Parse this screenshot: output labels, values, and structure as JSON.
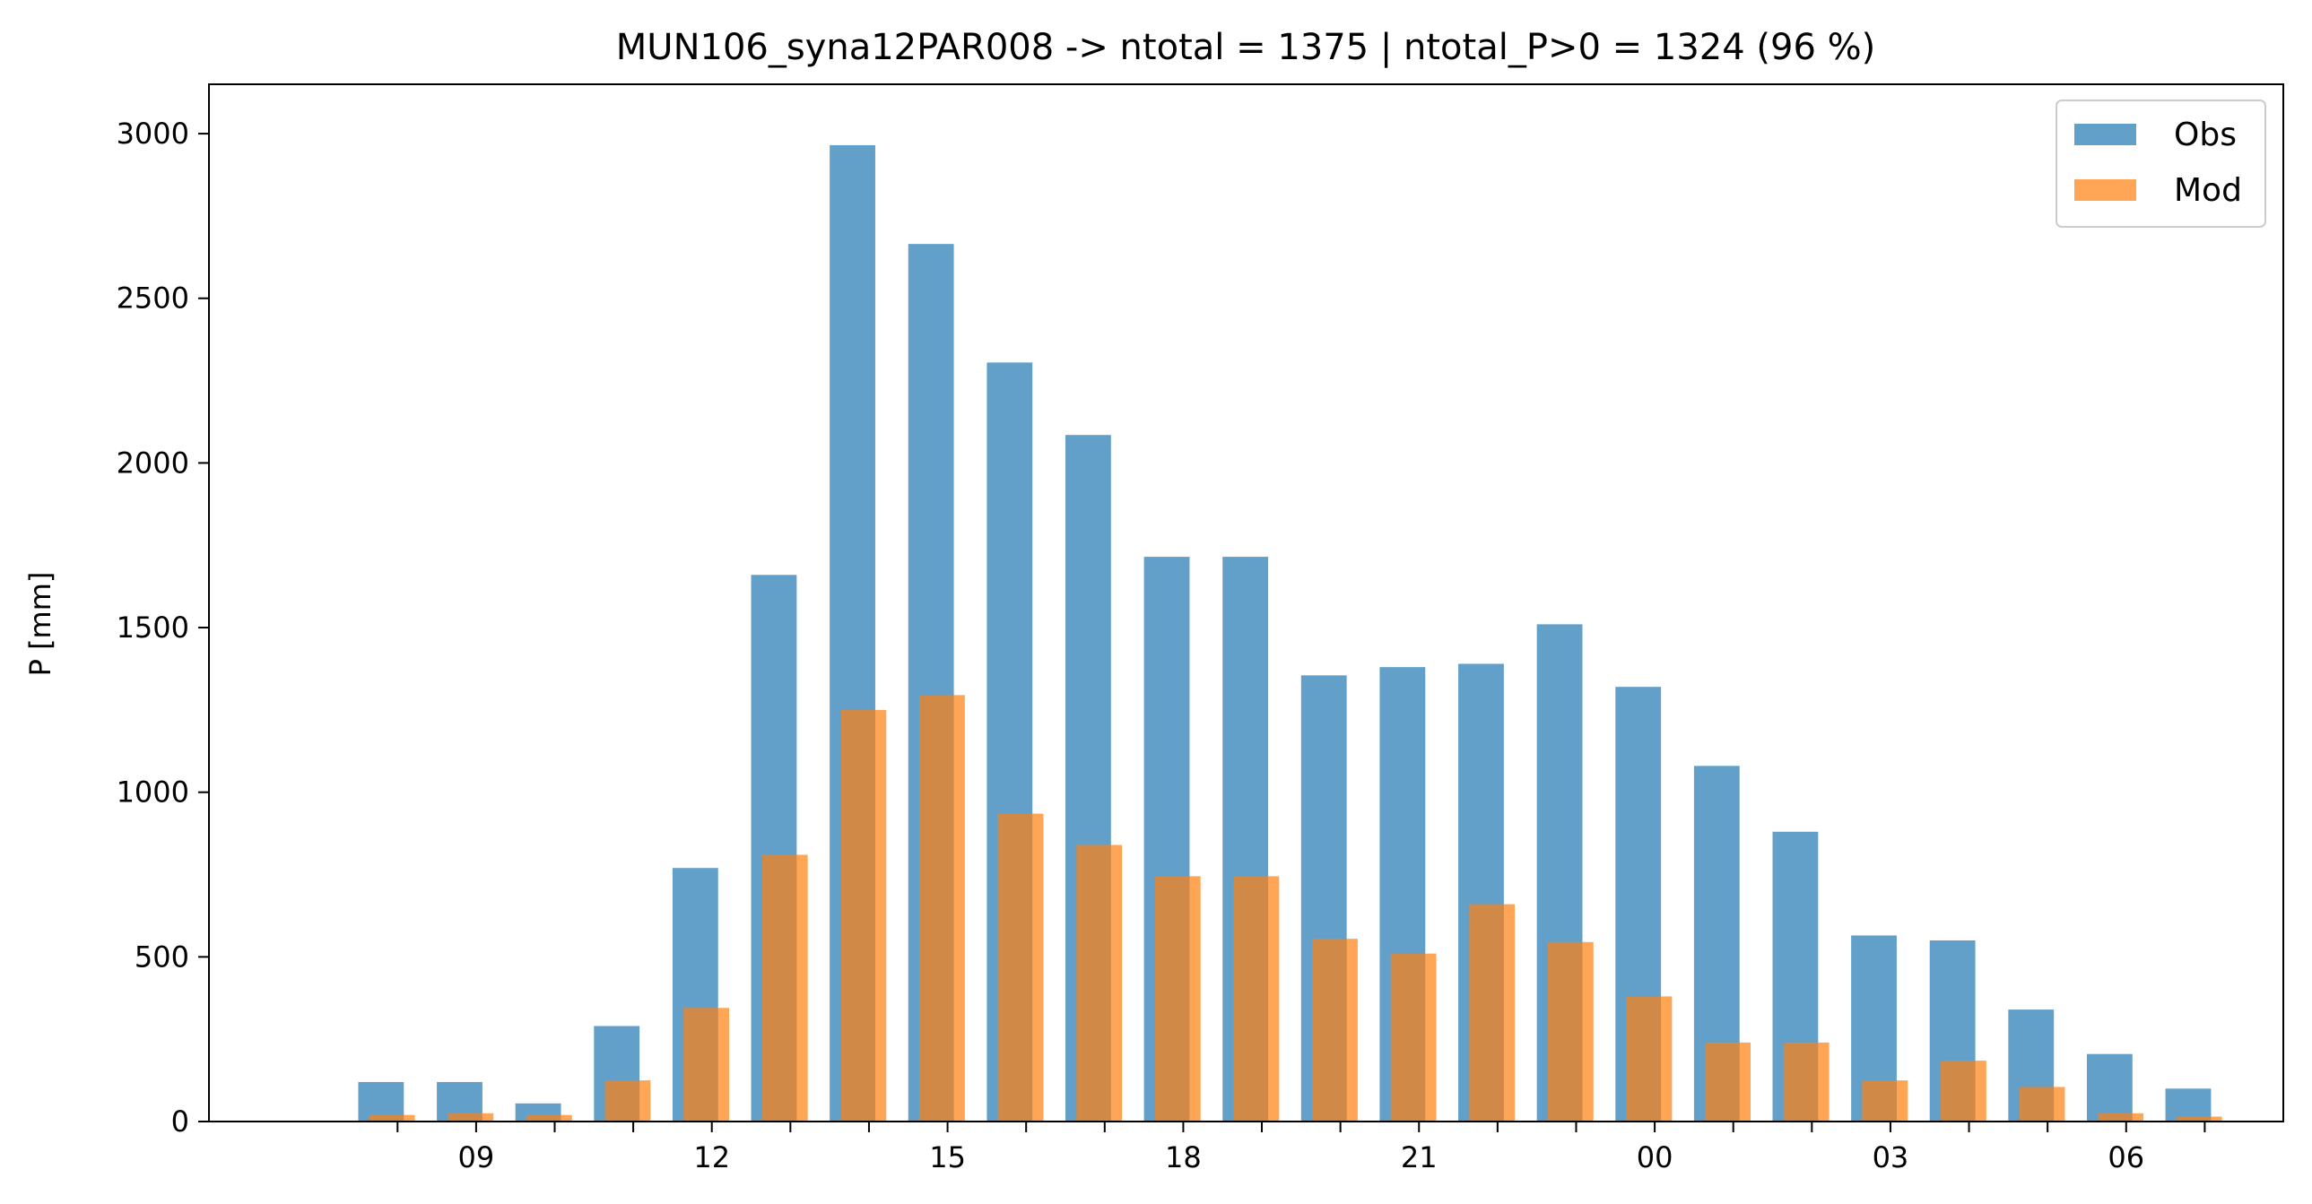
{
  "chart_data": {
    "type": "bar",
    "title": "MUN106_syna12PAR008 -> ntotal = 1375 | ntotal_P>0 = 1324 (96 %)",
    "ylabel": "P [mm]",
    "xlabel": "",
    "ylim": [
      0,
      3150
    ],
    "yticks": [
      0,
      500,
      1000,
      1500,
      2000,
      2500,
      3000
    ],
    "x_tick_labels": [
      {
        "hour": 9,
        "label": "09"
      },
      {
        "hour": 12,
        "label": "12"
      },
      {
        "hour": 15,
        "label": "15"
      },
      {
        "hour": 18,
        "label": "18"
      },
      {
        "hour": 21,
        "label": "21"
      },
      {
        "hour": 24,
        "label": "00"
      },
      {
        "hour": 27,
        "label": "03"
      },
      {
        "hour": 30,
        "label": "06"
      }
    ],
    "x_minor_ticks": [
      8,
      9,
      10,
      11,
      12,
      13,
      14,
      15,
      16,
      17,
      18,
      19,
      20,
      21,
      22,
      23,
      24,
      25,
      26,
      27,
      28,
      29,
      30,
      31
    ],
    "hours": [
      8,
      9,
      10,
      11,
      12,
      13,
      14,
      15,
      16,
      17,
      18,
      19,
      20,
      21,
      22,
      23,
      24,
      25,
      26,
      27,
      28,
      29,
      30,
      31
    ],
    "xlim": [
      5.6,
      32.0
    ],
    "series": [
      {
        "name": "Obs",
        "color": "#1f77b4",
        "values": [
          120,
          120,
          55,
          290,
          770,
          1660,
          2965,
          2665,
          2305,
          2085,
          1715,
          1715,
          1355,
          1380,
          1390,
          1510,
          1320,
          1080,
          880,
          565,
          550,
          340,
          205,
          100
        ]
      },
      {
        "name": "Mod",
        "color": "#ff7f0e",
        "values": [
          20,
          25,
          20,
          125,
          345,
          810,
          1250,
          1295,
          935,
          840,
          745,
          745,
          555,
          510,
          660,
          545,
          380,
          240,
          240,
          125,
          185,
          105,
          25,
          15
        ]
      }
    ],
    "grid": false,
    "legend": "top-right"
  }
}
